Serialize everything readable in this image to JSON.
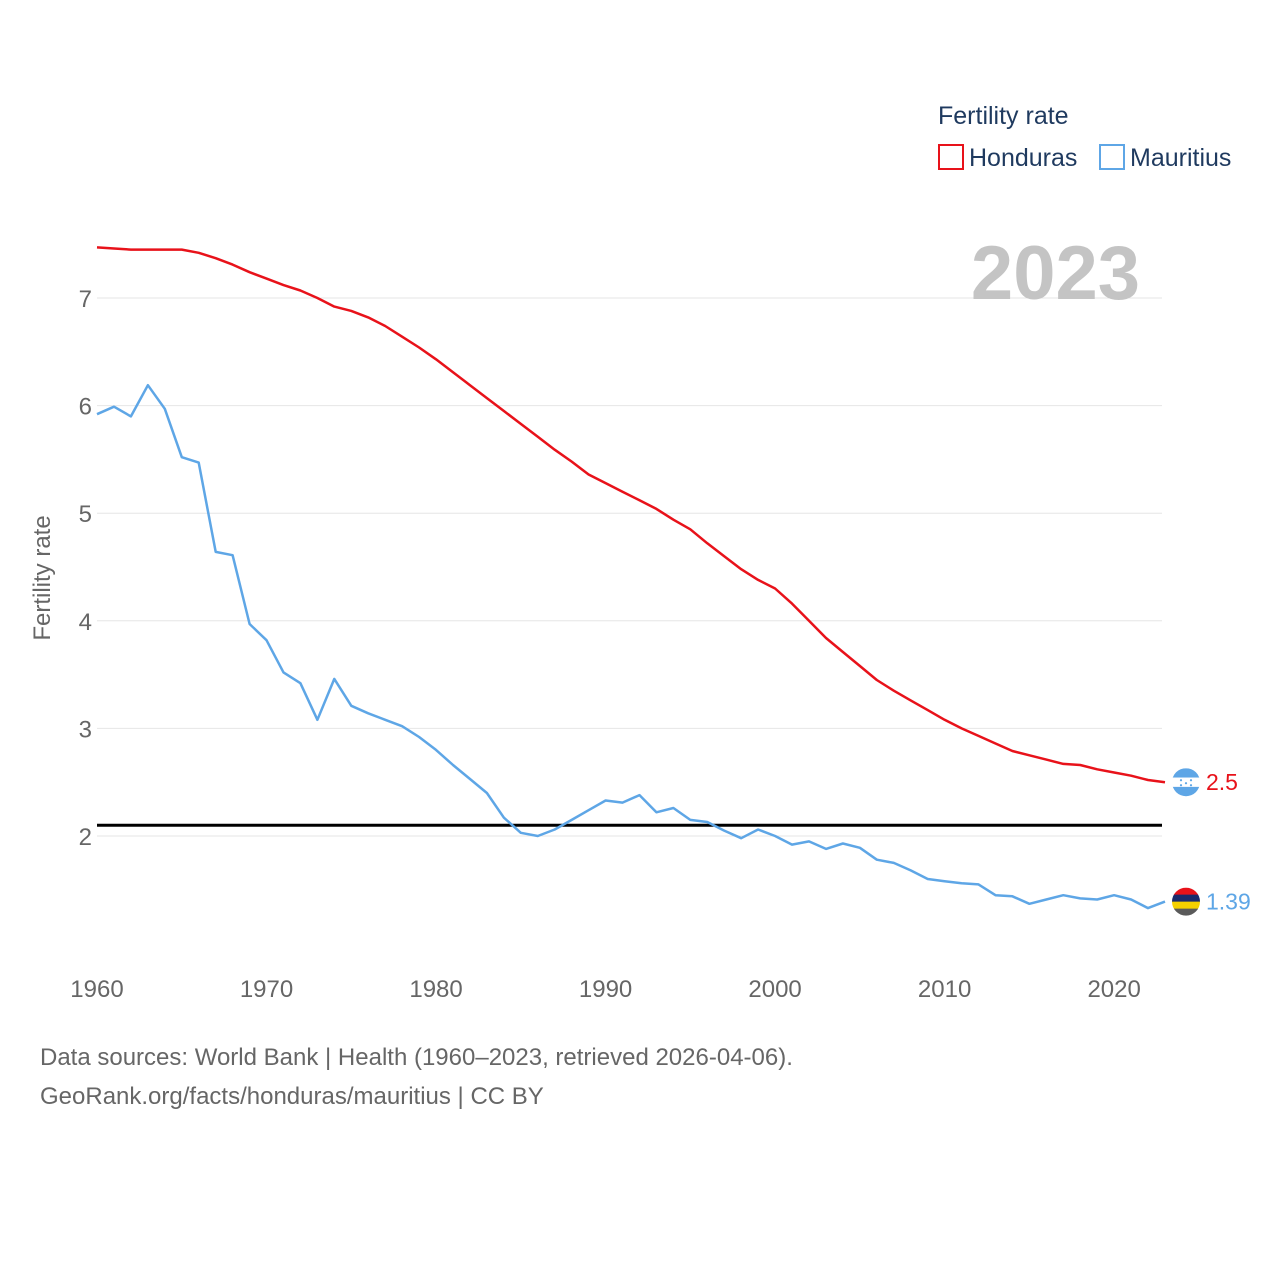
{
  "chart_data": {
    "type": "line",
    "title": "Fertility rate",
    "year_label": "2023",
    "ylabel": "Fertility rate",
    "xlabel": "",
    "xlim": [
      1960,
      2023
    ],
    "ylim": [
      1.0,
      7.5
    ],
    "x_ticks": [
      1960,
      1970,
      1980,
      1990,
      2000,
      2010,
      2020
    ],
    "y_ticks": [
      2,
      3,
      4,
      5,
      6,
      7
    ],
    "grid": true,
    "legend_position": "top-right",
    "reference_line": {
      "value": 2.1,
      "color": "#000000"
    },
    "x": [
      1960,
      1961,
      1962,
      1963,
      1964,
      1965,
      1966,
      1967,
      1968,
      1969,
      1970,
      1971,
      1972,
      1973,
      1974,
      1975,
      1976,
      1977,
      1978,
      1979,
      1980,
      1981,
      1982,
      1983,
      1984,
      1985,
      1986,
      1987,
      1988,
      1989,
      1990,
      1991,
      1992,
      1993,
      1994,
      1995,
      1996,
      1997,
      1998,
      1999,
      2000,
      2001,
      2002,
      2003,
      2004,
      2005,
      2006,
      2007,
      2008,
      2009,
      2010,
      2011,
      2012,
      2013,
      2014,
      2015,
      2016,
      2017,
      2018,
      2019,
      2020,
      2021,
      2022,
      2023
    ],
    "series": [
      {
        "name": "Honduras",
        "color": "#e8121a",
        "end_label": "2.5",
        "values": [
          7.47,
          7.46,
          7.45,
          7.45,
          7.45,
          7.45,
          7.42,
          7.37,
          7.31,
          7.24,
          7.18,
          7.12,
          7.07,
          7.0,
          6.92,
          6.88,
          6.82,
          6.74,
          6.64,
          6.54,
          6.43,
          6.31,
          6.19,
          6.07,
          5.95,
          5.83,
          5.71,
          5.59,
          5.48,
          5.36,
          5.28,
          5.2,
          5.12,
          5.04,
          4.94,
          4.85,
          4.72,
          4.6,
          4.48,
          4.38,
          4.3,
          4.16,
          4.0,
          3.84,
          3.71,
          3.58,
          3.45,
          3.35,
          3.26,
          3.17,
          3.08,
          3.0,
          2.93,
          2.86,
          2.79,
          2.75,
          2.71,
          2.67,
          2.66,
          2.62,
          2.59,
          2.56,
          2.52,
          2.5
        ]
      },
      {
        "name": "Mauritius",
        "color": "#5ea6e6",
        "end_label": "1.39",
        "values": [
          5.92,
          5.99,
          5.9,
          6.19,
          5.97,
          5.52,
          5.47,
          4.64,
          4.61,
          3.97,
          3.82,
          3.52,
          3.42,
          3.08,
          3.46,
          3.21,
          3.14,
          3.08,
          3.02,
          2.92,
          2.8,
          2.66,
          2.53,
          2.4,
          2.17,
          2.03,
          2.0,
          2.06,
          2.15,
          2.24,
          2.33,
          2.31,
          2.38,
          2.22,
          2.26,
          2.15,
          2.13,
          2.05,
          1.98,
          2.06,
          2.0,
          1.92,
          1.95,
          1.88,
          1.93,
          1.89,
          1.78,
          1.75,
          1.68,
          1.6,
          1.58,
          1.56,
          1.55,
          1.45,
          1.44,
          1.37,
          1.41,
          1.45,
          1.42,
          1.41,
          1.45,
          1.41,
          1.33,
          1.39
        ]
      }
    ]
  },
  "legend": {
    "title": "Fertility rate",
    "items": [
      {
        "label": "Honduras",
        "color": "#e8121a"
      },
      {
        "label": "Mauritius",
        "color": "#5ea6e6"
      }
    ]
  },
  "flags": {
    "honduras": {
      "icon": "honduras-flag-icon",
      "colors": [
        "#5ea6e6",
        "#ffffff",
        "#5ea6e6"
      ]
    },
    "mauritius": {
      "icon": "mauritius-flag-icon",
      "colors": [
        "#e8121a",
        "#1a2a6c",
        "#f5d000",
        "#5a5a5a"
      ]
    }
  },
  "footer": {
    "sources": "Data sources: World Bank | Health (1960–2023, retrieved 2026-04-06).",
    "link": "GeoRank.org/facts/honduras/mauritius | CC BY"
  }
}
